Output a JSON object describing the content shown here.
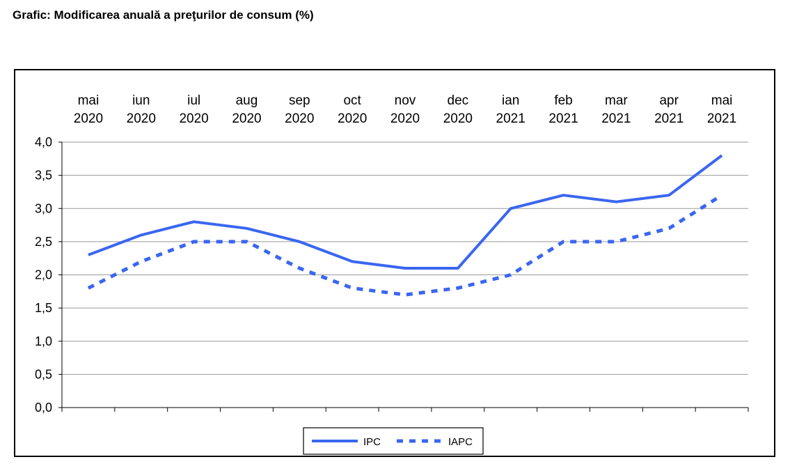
{
  "title": "Grafic: Modificarea anuală a preţurilor de consum (%)",
  "chart_data": {
    "type": "line",
    "title": "Grafic: Modificarea anuală a preţurilor de consum (%)",
    "categories": [
      [
        "mai",
        "2020"
      ],
      [
        "iun",
        "2020"
      ],
      [
        "iul",
        "2020"
      ],
      [
        "aug",
        "2020"
      ],
      [
        "sep",
        "2020"
      ],
      [
        "oct",
        "2020"
      ],
      [
        "nov",
        "2020"
      ],
      [
        "dec",
        "2020"
      ],
      [
        "ian",
        "2021"
      ],
      [
        "feb",
        "2021"
      ],
      [
        "mar",
        "2021"
      ],
      [
        "apr",
        "2021"
      ],
      [
        "mai",
        "2021"
      ]
    ],
    "ylim": [
      0,
      4
    ],
    "yticks": [
      "0,0",
      "0,5",
      "1,0",
      "1,5",
      "2,0",
      "2,5",
      "3,0",
      "3,5",
      "4,0"
    ],
    "grid": true,
    "legend_position": "bottom",
    "series": [
      {
        "name": "IPC",
        "style": "solid",
        "color": "#3a66f0",
        "values": [
          2.3,
          2.6,
          2.8,
          2.7,
          2.5,
          2.2,
          2.1,
          2.1,
          3.0,
          3.2,
          3.1,
          3.2,
          3.8
        ]
      },
      {
        "name": "IAPC",
        "style": "dotted",
        "color": "#3a66f0",
        "values": [
          1.8,
          2.2,
          2.5,
          2.5,
          2.1,
          1.8,
          1.7,
          1.8,
          2.0,
          2.5,
          2.5,
          2.7,
          3.2
        ]
      }
    ]
  }
}
